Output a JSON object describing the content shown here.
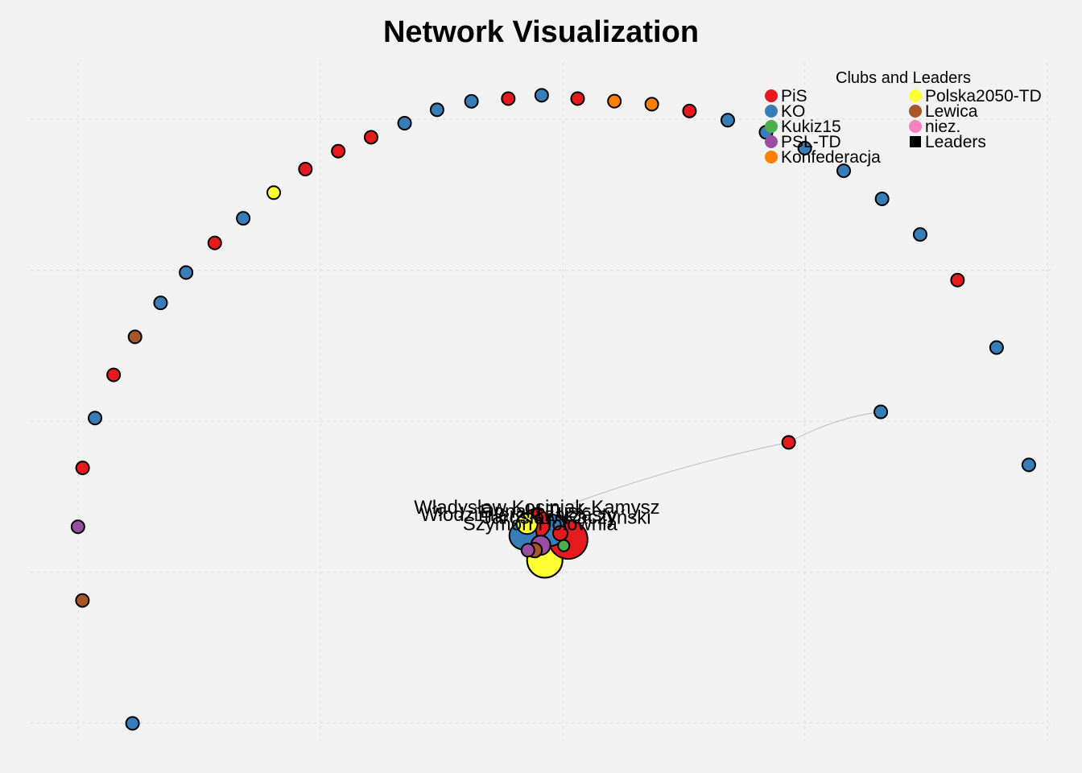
{
  "chart_data": {
    "type": "scatter",
    "title": "Network Visualization",
    "grid": true,
    "axes_visible": false,
    "legend": {
      "title": "Clubs and Leaders",
      "placement": "top-right",
      "entries": [
        {
          "label": "PiS",
          "color": "#e41a1c",
          "marker": "circle"
        },
        {
          "label": "KO",
          "color": "#377eb8",
          "marker": "circle"
        },
        {
          "label": "Kukiz15",
          "color": "#4daf4a",
          "marker": "circle"
        },
        {
          "label": "PSL-TD",
          "color": "#984ea3",
          "marker": "circle"
        },
        {
          "label": "Konfederacja",
          "color": "#ff7f00",
          "marker": "circle"
        },
        {
          "label": "Polska2050-TD",
          "color": "#ffff33",
          "marker": "circle"
        },
        {
          "label": "Lewica",
          "color": "#a65628",
          "marker": "circle"
        },
        {
          "label": "niez.",
          "color": "#f781bf",
          "marker": "circle"
        },
        {
          "label": "Leaders",
          "color": "#000000",
          "marker": "square"
        }
      ]
    },
    "club_colors": {
      "PiS": "#e41a1c",
      "KO": "#377eb8",
      "Kukiz15": "#4daf4a",
      "PSL-TD": "#984ea3",
      "Konfederacja": "#ff7f00",
      "Polska2050-TD": "#ffff33",
      "Lewica": "#a65628",
      "niez.": "#f781bf"
    },
    "nodes": [
      {
        "x": 1.667,
        "y": 7.167,
        "club": "PiS"
      },
      {
        "x": 2.012,
        "y": 7.189,
        "club": "KO"
      },
      {
        "x": 2.383,
        "y": 7.167,
        "club": "PiS"
      },
      {
        "x": 2.763,
        "y": 7.15,
        "club": "Konfederacja"
      },
      {
        "x": 3.149,
        "y": 7.13,
        "club": "Konfederacja"
      },
      {
        "x": 3.538,
        "y": 7.085,
        "club": "PiS"
      },
      {
        "x": 1.287,
        "y": 7.149,
        "club": "KO"
      },
      {
        "x": 0.932,
        "y": 7.093,
        "club": "KO"
      },
      {
        "x": 0.597,
        "y": 7.004,
        "club": "KO"
      },
      {
        "x": 0.251,
        "y": 6.911,
        "club": "PiS"
      },
      {
        "x": -0.088,
        "y": 6.819,
        "club": "PiS"
      },
      {
        "x": -0.427,
        "y": 6.7,
        "club": "PiS"
      },
      {
        "x": -0.754,
        "y": 6.544,
        "club": "Polska2050-TD"
      },
      {
        "x": -1.069,
        "y": 6.374,
        "club": "KO"
      },
      {
        "x": -1.363,
        "y": 6.211,
        "club": "PiS"
      },
      {
        "x": -1.659,
        "y": 6.015,
        "club": "KO"
      },
      {
        "x": -1.922,
        "y": 5.814,
        "club": "KO"
      },
      {
        "x": -2.186,
        "y": 5.589,
        "club": "Lewica"
      },
      {
        "x": -2.407,
        "y": 5.337,
        "club": "PiS"
      },
      {
        "x": -2.599,
        "y": 5.051,
        "club": "KO"
      },
      {
        "x": -2.727,
        "y": 4.721,
        "club": "PiS"
      },
      {
        "x": -2.775,
        "y": 4.331,
        "club": "PSL-TD"
      },
      {
        "x": -2.729,
        "y": 3.843,
        "club": "Lewica"
      },
      {
        "x": -2.212,
        "y": 3.029,
        "club": "KO"
      },
      {
        "x": 3.933,
        "y": 7.024,
        "club": "KO"
      },
      {
        "x": 4.328,
        "y": 6.944,
        "club": "KO"
      },
      {
        "x": 4.728,
        "y": 6.839,
        "club": "KO"
      },
      {
        "x": 5.13,
        "y": 6.689,
        "club": "KO"
      },
      {
        "x": 5.526,
        "y": 6.503,
        "club": "KO"
      },
      {
        "x": 5.919,
        "y": 6.267,
        "club": "KO"
      },
      {
        "x": 6.305,
        "y": 5.965,
        "club": "PiS"
      },
      {
        "x": 6.708,
        "y": 5.518,
        "club": "KO"
      },
      {
        "x": 5.513,
        "y": 5.092,
        "club": "KO"
      },
      {
        "x": 7.041,
        "y": 4.741,
        "club": "KO"
      },
      {
        "x": 4.562,
        "y": 4.89,
        "club": "PiS"
      }
    ],
    "edges": [
      {
        "from": [
          5.513,
          5.092
        ],
        "to": [
          4.562,
          4.89
        ]
      },
      {
        "from": [
          4.562,
          4.89
        ],
        "to": [
          2.18,
          4.45
        ]
      }
    ],
    "leaders": [
      {
        "x": 2.044,
        "y": 4.111,
        "club": "Polska2050-TD",
        "size": 22
      },
      {
        "x": 2.286,
        "y": 4.246,
        "club": "PiS",
        "size": 24
      },
      {
        "x": 2.093,
        "y": 4.309,
        "club": "KO",
        "size": 20
      },
      {
        "x": 1.95,
        "y": 4.352,
        "club": "PiS",
        "size": 18
      },
      {
        "x": 1.82,
        "y": 4.272,
        "club": "KO",
        "size": 17
      },
      {
        "x": 1.861,
        "y": 4.352,
        "club": "Polska2050-TD",
        "size": 13
      },
      {
        "x": 2.002,
        "y": 4.209,
        "club": "PSL-TD",
        "size": 12
      },
      {
        "x": 2.204,
        "y": 4.288,
        "club": "PiS",
        "size": 9
      },
      {
        "x": 2.24,
        "y": 4.206,
        "club": "Kukiz15",
        "size": 7
      },
      {
        "x": 1.94,
        "y": 4.176,
        "club": "Lewica",
        "size": 9
      },
      {
        "x": 1.87,
        "y": 4.176,
        "club": "PSL-TD",
        "size": 8
      }
    ],
    "leader_labels": [
      {
        "text": "Władysław Kosiniak-Kamysz",
        "x": 1.963,
        "y": 4.418
      },
      {
        "text": "Włodzimierz Czarzasty",
        "x": 1.773,
        "y": 4.37
      },
      {
        "text": "Donald Tusk",
        "x": 1.93,
        "y": 4.392
      },
      {
        "text": "Jarosław Kaczyński",
        "x": 2.27,
        "y": 4.352
      },
      {
        "text": "Szymon Hołownia",
        "x": 1.995,
        "y": 4.309
      }
    ],
    "xlim": [
      -3.58,
      7.59
    ],
    "ylim": [
      2.7,
      7.82
    ],
    "x_gridlines": [
      -2.77,
      -0.27,
      2.23,
      4.73,
      7.23
    ],
    "y_gridlines": [
      3.03,
      4.03,
      5.03,
      6.03,
      7.03
    ]
  }
}
